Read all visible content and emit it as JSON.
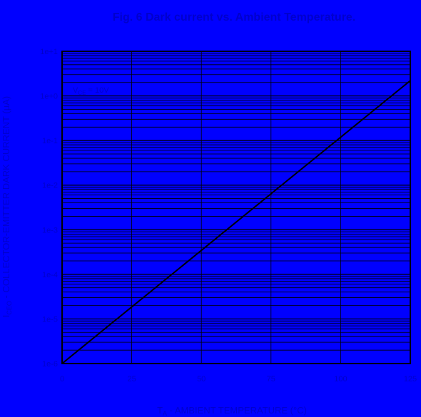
{
  "chart_data": {
    "type": "line",
    "title": "Fig. 6  Dark current vs. Ambient Temperature.",
    "xlabel": "T_A - AMBIENT TEMPERATURE (°C)",
    "xlabel_main": "T",
    "xlabel_sub": "A",
    "xlabel_rest": " - AMBIENT TEMPERATURE (°C)",
    "ylabel": "I_CEO - COLLECTOR-EMITTER DARK CURRENT (µA)",
    "ylabel_main": "I",
    "ylabel_sub": "CEO",
    "ylabel_rest": " - COLLECTOR-EMITTER DARK CURRENT (µA)",
    "annotation": "V_CE = 10V",
    "annotation_main": "V",
    "annotation_sub": "CE",
    "annotation_rest": " = 10V",
    "xlim": [
      0,
      125
    ],
    "ylim_exponent": [
      -6,
      1
    ],
    "y_scale": "log",
    "x_ticks": [
      0,
      25,
      50,
      75,
      100,
      125
    ],
    "y_tick_labels": [
      "1e+1",
      "1e+0",
      "1e-1",
      "1e-2",
      "1e-3",
      "1e-4",
      "1e-5",
      "1e-6"
    ],
    "grid": true,
    "series": [
      {
        "x": [
          0,
          125
        ],
        "y": [
          1e-06,
          2.2
        ]
      }
    ],
    "colors": {
      "background": "#0000FF",
      "grid": "#000000",
      "line": "#000000",
      "text": "#0000CC"
    }
  }
}
